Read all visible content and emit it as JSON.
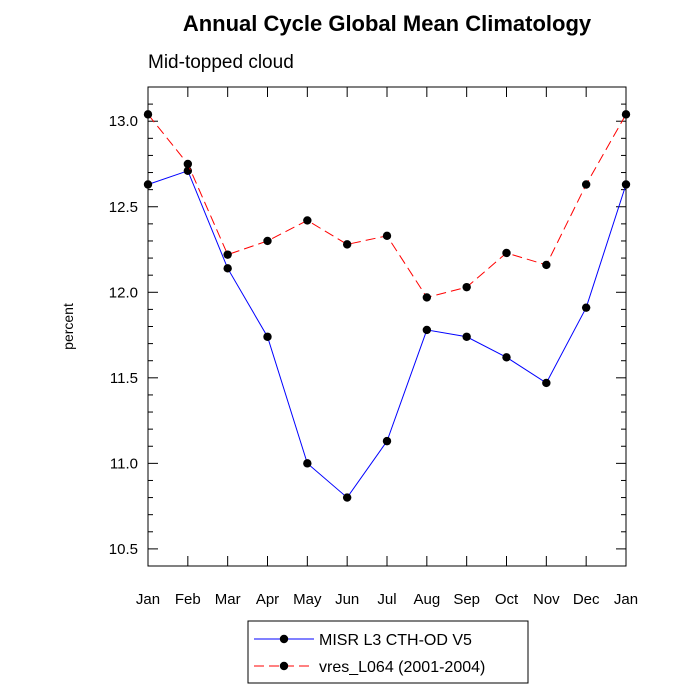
{
  "chart_data": {
    "type": "line",
    "title": "Annual Cycle Global Mean Climatology",
    "subtitle": "Mid-topped cloud",
    "xlabel": "",
    "ylabel": "percent",
    "categories": [
      "Jan",
      "Feb",
      "Mar",
      "Apr",
      "May",
      "Jun",
      "Jul",
      "Aug",
      "Sep",
      "Oct",
      "Nov",
      "Dec",
      "Jan"
    ],
    "ylim": [
      10.4,
      13.2
    ],
    "yticks": [
      10.5,
      11.0,
      11.5,
      12.0,
      12.5,
      13.0
    ],
    "ytick_labels": [
      "10.5",
      "11.0",
      "11.5",
      "12.0",
      "12.5",
      "13.0"
    ],
    "series": [
      {
        "name": "MISR L3 CTH-OD V5",
        "color": "#0000ff",
        "dash": "solid",
        "values": [
          12.63,
          12.71,
          12.14,
          11.74,
          11.0,
          10.8,
          11.13,
          11.78,
          11.74,
          11.62,
          11.47,
          11.91,
          12.63
        ]
      },
      {
        "name": "vres_L064 (2001-2004)",
        "color": "#ff0000",
        "dash": "dashed",
        "values": [
          13.04,
          12.75,
          12.22,
          12.3,
          12.42,
          12.28,
          12.33,
          11.97,
          12.03,
          12.23,
          12.16,
          12.63,
          13.04
        ]
      }
    ],
    "legend": "bottom-center"
  }
}
